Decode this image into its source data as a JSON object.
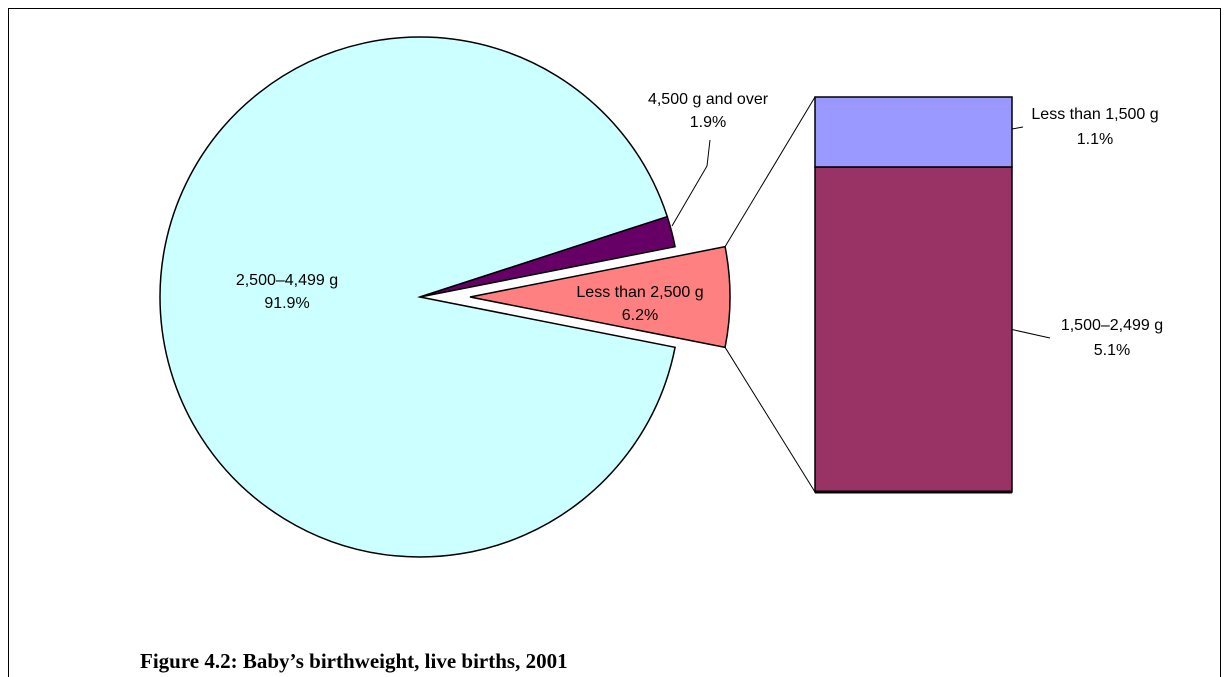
{
  "chart_data": {
    "type": "pie",
    "title": "Figure 4.2: Baby’s birthweight, live births, 2001",
    "categories": [
      "2,500–4,499 g",
      "4,500 g and over",
      "Less than 2,500 g"
    ],
    "values": [
      91.9,
      1.9,
      6.2
    ],
    "value_labels": [
      "91.9%",
      "1.9%",
      "6.2%"
    ],
    "colors": [
      "#ccffff",
      "#660066",
      "#ff8080"
    ],
    "breakdown": {
      "type": "bar",
      "categories": [
        "Less than 1,500 g",
        "1,500–2,499 g"
      ],
      "values": [
        1.1,
        5.1
      ],
      "value_labels": [
        "1.1%",
        "5.1%"
      ],
      "colors": [
        "#9999ff",
        "#993366"
      ]
    }
  }
}
